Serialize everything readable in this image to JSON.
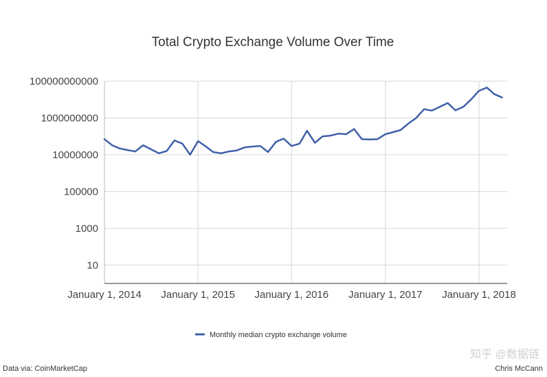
{
  "chart_data": {
    "type": "line",
    "title": "Total Crypto Exchange Volume Over Time",
    "xlabel": "",
    "ylabel": "",
    "y_scale": "log",
    "ylim": [
      1,
      100000000000
    ],
    "y_ticks": [
      "10",
      "1000",
      "100000",
      "10000000",
      "1000000000",
      "100000000000"
    ],
    "x_ticks": [
      "January 1, 2014",
      "January 1, 2015",
      "January 1, 2016",
      "January 1, 2017",
      "January 1, 2018"
    ],
    "grid": true,
    "legend_position": "bottom-center",
    "series": [
      {
        "name": "Monthly median crypto exchange volume",
        "color": "#3f5fa8",
        "x": [
          "2014-01",
          "2014-02",
          "2014-03",
          "2014-04",
          "2014-05",
          "2014-06",
          "2014-07",
          "2014-08",
          "2014-09",
          "2014-10",
          "2014-11",
          "2014-12",
          "2015-01",
          "2015-02",
          "2015-03",
          "2015-04",
          "2015-05",
          "2015-06",
          "2015-07",
          "2015-08",
          "2015-09",
          "2015-10",
          "2015-11",
          "2015-12",
          "2016-01",
          "2016-02",
          "2016-03",
          "2016-04",
          "2016-05",
          "2016-06",
          "2016-07",
          "2016-08",
          "2016-09",
          "2016-10",
          "2016-11",
          "2016-12",
          "2017-01",
          "2017-02",
          "2017-03",
          "2017-04",
          "2017-05",
          "2017-06",
          "2017-07",
          "2017-08",
          "2017-09",
          "2017-10",
          "2017-11",
          "2017-12",
          "2018-01",
          "2018-02",
          "2018-03",
          "2018-04"
        ],
        "values": [
          70000000,
          32000000,
          22000000,
          18000000,
          15000000,
          33000000,
          20000000,
          12000000,
          16000000,
          60000000,
          40000000,
          10000000,
          55000000,
          28000000,
          14000000,
          12000000,
          15000000,
          17000000,
          25000000,
          28000000,
          30000000,
          14000000,
          50000000,
          75000000,
          30000000,
          40000000,
          200000000,
          45000000,
          100000000,
          110000000,
          140000000,
          130000000,
          250000000,
          70000000,
          68000000,
          70000000,
          130000000,
          170000000,
          220000000,
          500000000,
          1000000000,
          3000000000,
          2500000000,
          4000000000,
          6500000000,
          2600000000,
          4000000000,
          10000000000,
          30000000000,
          45000000000,
          20000000000,
          13000000000
        ]
      }
    ]
  },
  "footer": {
    "source": "Data via: CoinMarketCap",
    "author": "Chris McCann"
  },
  "watermark": "知乎 @数据链"
}
